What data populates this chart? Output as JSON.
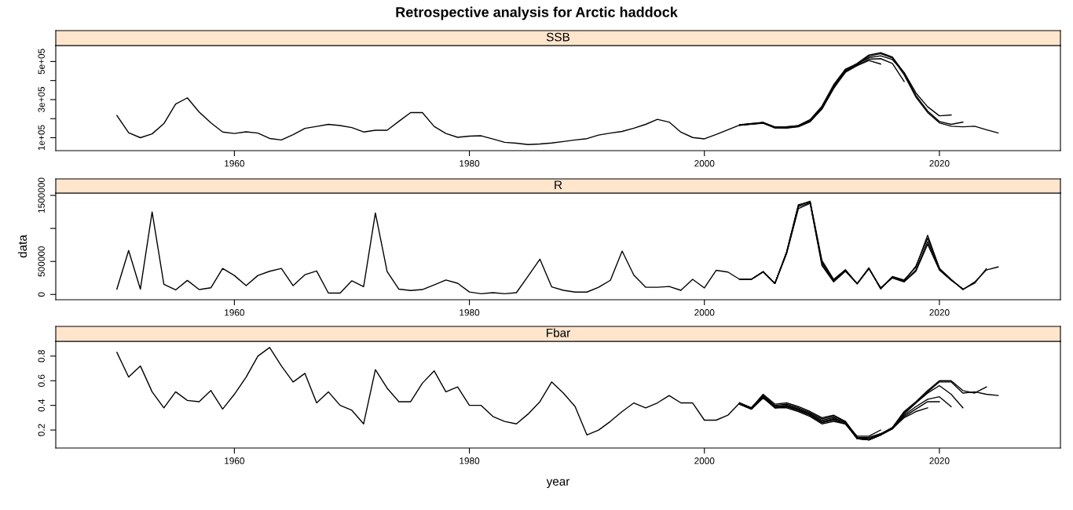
{
  "chart_data": [
    {
      "type": "line",
      "title": "Retrospective analysis for Arctic haddock",
      "subtitle": "SSB",
      "xlim": [
        1944.8,
        2030.3
      ],
      "xticks": [
        1960,
        1980,
        2000,
        2020
      ],
      "ylim": [
        32000,
        584000
      ],
      "yticks": [
        {
          "value": 100000,
          "label": "1e+05"
        },
        {
          "value": 200000,
          "label": null
        },
        {
          "value": 300000,
          "label": "3e+05"
        },
        {
          "value": 400000,
          "label": null
        },
        {
          "value": 500000,
          "label": "5e+05"
        }
      ],
      "grid": false,
      "line_style": "solid",
      "marker": "none",
      "series": [
        {
          "color": "#000000",
          "x": [
            1950,
            1951,
            1952,
            1953,
            1954,
            1955,
            1956,
            1957,
            1958,
            1959,
            1960,
            1961,
            1962,
            1963,
            1964,
            1965,
            1966,
            1967,
            1968,
            1969,
            1970,
            1971,
            1972,
            1973,
            1974,
            1975,
            1976,
            1977,
            1978,
            1979,
            1980,
            1981,
            1982,
            1983,
            1984,
            1985,
            1986,
            1987,
            1988,
            1989,
            1990,
            1991,
            1992,
            1993,
            1994,
            1995,
            1996,
            1997,
            1998,
            1999,
            2000,
            2001,
            2002,
            2003,
            2004,
            2005,
            2006,
            2007,
            2008,
            2009,
            2010,
            2011,
            2012,
            2013,
            2014,
            2015,
            2016,
            2017,
            2018,
            2019,
            2020,
            2021,
            2022,
            2023,
            2024,
            2025
          ],
          "values": [
            217000,
            126000,
            100000,
            120000,
            174000,
            277000,
            309000,
            235000,
            178000,
            130000,
            122000,
            131000,
            124000,
            96000,
            88000,
            116000,
            149000,
            159000,
            170000,
            164000,
            153000,
            130000,
            139000,
            139000,
            186000,
            232000,
            232000,
            159000,
            122000,
            102000,
            108000,
            110000,
            93000,
            76000,
            71000,
            64000,
            67000,
            72000,
            80000,
            88000,
            95000,
            114000,
            124000,
            133000,
            150000,
            170000,
            196000,
            182000,
            129000,
            101000,
            94000,
            117000,
            142000,
            166000,
            172000,
            178000,
            151000,
            150000,
            157000,
            184000,
            250000,
            358000,
            447000,
            483000,
            528000,
            541000,
            519000,
            430000,
            313000,
            232000,
            178000,
            160000,
            157000,
            160000,
            142000,
            125000
          ]
        },
        {
          "color": "#000000",
          "x": [
            2003,
            2004,
            2005,
            2006,
            2007,
            2008,
            2009,
            2010,
            2011,
            2012,
            2013,
            2014,
            2015,
            2016,
            2017,
            2018,
            2019,
            2020,
            2021,
            2022
          ],
          "values": [
            168000,
            174000,
            181000,
            155000,
            154000,
            161000,
            190000,
            258000,
            368000,
            455000,
            490000,
            534000,
            546000,
            524000,
            440000,
            322000,
            240000,
            185000,
            170000,
            182000
          ]
        },
        {
          "color": "#000000",
          "x": [
            2003,
            2004,
            2005,
            2006,
            2007,
            2008,
            2009,
            2010,
            2011,
            2012,
            2013,
            2014,
            2015,
            2016,
            2017,
            2018,
            2019,
            2020,
            2021
          ],
          "values": [
            165000,
            171000,
            176000,
            153000,
            155000,
            164000,
            195000,
            265000,
            378000,
            460000,
            488000,
            520000,
            530000,
            510000,
            442000,
            335000,
            262000,
            215000,
            219000
          ]
        },
        {
          "color": "#000000",
          "x": [
            2003,
            2004,
            2005,
            2006,
            2007,
            2008,
            2009,
            2010,
            2011,
            2012,
            2013,
            2014,
            2015,
            2016,
            2017
          ],
          "values": [
            167000,
            173000,
            179000,
            157000,
            158000,
            163000,
            187000,
            255000,
            372000,
            452000,
            480000,
            512000,
            515000,
            490000,
            395000
          ]
        },
        {
          "color": "#000000",
          "x": [
            2003,
            2004,
            2005,
            2006,
            2007,
            2008,
            2009,
            2010,
            2011,
            2012,
            2013,
            2014,
            2015
          ],
          "values": [
            166000,
            172000,
            177000,
            152000,
            152000,
            159000,
            185000,
            252000,
            362000,
            443000,
            478000,
            505000,
            487000
          ]
        }
      ]
    },
    {
      "type": "line",
      "subtitle": "R",
      "ylabel": "data",
      "xlim": [
        1944.8,
        2030.3
      ],
      "xticks": [
        1960,
        1980,
        2000,
        2020
      ],
      "ylim": [
        -80000,
        1536000
      ],
      "yticks": [
        0,
        500000,
        {
          "value": 1000000,
          "label": null
        },
        1500000
      ],
      "grid": false,
      "line_style": "solid",
      "marker": "none",
      "series": [
        {
          "color": "#000000",
          "x": [
            1950,
            1951,
            1952,
            1953,
            1954,
            1955,
            1956,
            1957,
            1958,
            1959,
            1960,
            1961,
            1962,
            1963,
            1964,
            1965,
            1966,
            1967,
            1968,
            1969,
            1970,
            1971,
            1972,
            1973,
            1974,
            1975,
            1976,
            1977,
            1978,
            1979,
            1980,
            1981,
            1982,
            1983,
            1984,
            1985,
            1986,
            1987,
            1988,
            1989,
            1990,
            1991,
            1992,
            1993,
            1994,
            1995,
            1996,
            1997,
            1998,
            1999,
            2000,
            2001,
            2002,
            2003,
            2004,
            2005,
            2006,
            2007,
            2008,
            2009,
            2010,
            2011,
            2012,
            2013,
            2014,
            2015,
            2016,
            2017,
            2018,
            2019,
            2020,
            2021,
            2022,
            2023,
            2024,
            2025
          ],
          "values": [
            80000,
            665000,
            80000,
            1250000,
            154000,
            69000,
            213000,
            74000,
            101000,
            394000,
            287000,
            133000,
            287000,
            351000,
            394000,
            133000,
            298000,
            356000,
            21000,
            21000,
            207000,
            117000,
            1234000,
            346000,
            80000,
            59000,
            74000,
            144000,
            218000,
            170000,
            37000,
            11000,
            27000,
            11000,
            27000,
            277000,
            534000,
            115000,
            63000,
            36000,
            36000,
            109000,
            214000,
            656000,
            292000,
            109000,
            109000,
            120000,
            63000,
            229000,
            99000,
            365000,
            339000,
            229000,
            229000,
            344000,
            167000,
            646000,
            1349000,
            1412000,
            516000,
            229000,
            375000,
            162000,
            401000,
            83000,
            271000,
            219000,
            412000,
            896000,
            396000,
            229000,
            73000,
            188000,
            370000,
            417000
          ]
        },
        {
          "color": "#000000",
          "x": [
            2003,
            2004,
            2005,
            2006,
            2007,
            2008,
            2009,
            2010,
            2011,
            2012,
            2013,
            2014,
            2015,
            2016,
            2017,
            2018,
            2019,
            2020,
            2021,
            2022,
            2023,
            2024
          ],
          "values": [
            229000,
            229000,
            344000,
            167000,
            630000,
            1330000,
            1390000,
            470000,
            200000,
            360000,
            162000,
            395000,
            95000,
            260000,
            200000,
            370000,
            800000,
            380000,
            220000,
            80000,
            170000,
            390000
          ]
        },
        {
          "color": "#000000",
          "x": [
            2003,
            2004,
            2005,
            2006,
            2007,
            2008,
            2009,
            2010,
            2011,
            2012,
            2013,
            2014,
            2015,
            2016,
            2017,
            2018,
            2019,
            2020,
            2021,
            2022
          ],
          "values": [
            229000,
            229000,
            344000,
            167000,
            620000,
            1300000,
            1380000,
            440000,
            190000,
            350000,
            165000,
            390000,
            100000,
            250000,
            190000,
            350000,
            760000,
            370000,
            215000,
            85000
          ]
        },
        {
          "color": "#000000",
          "x": [
            2003,
            2004,
            2005,
            2006,
            2007,
            2008,
            2009,
            2010,
            2011,
            2012,
            2013,
            2014,
            2015,
            2016,
            2017,
            2018,
            2019,
            2020
          ],
          "values": [
            229000,
            229000,
            344000,
            167000,
            640000,
            1360000,
            1400000,
            490000,
            215000,
            368000,
            160000,
            398000,
            90000,
            265000,
            210000,
            430000,
            850000,
            400000
          ]
        }
      ]
    },
    {
      "type": "line",
      "subtitle": "Fbar",
      "xlabel": "year",
      "xlim": [
        1944.8,
        2030.3
      ],
      "xticks": [
        1960,
        1980,
        2000,
        2020
      ],
      "ylim": [
        0.054,
        0.92
      ],
      "yticks": [
        0.2,
        0.4,
        0.6,
        0.8
      ],
      "grid": false,
      "line_style": "solid",
      "marker": "none",
      "series": [
        {
          "color": "#000000",
          "x": [
            1950,
            1951,
            1952,
            1953,
            1954,
            1955,
            1956,
            1957,
            1958,
            1959,
            1960,
            1961,
            1962,
            1963,
            1964,
            1965,
            1966,
            1967,
            1968,
            1969,
            1970,
            1971,
            1972,
            1973,
            1974,
            1975,
            1976,
            1977,
            1978,
            1979,
            1980,
            1981,
            1982,
            1983,
            1984,
            1985,
            1986,
            1987,
            1988,
            1989,
            1990,
            1991,
            1992,
            1993,
            1994,
            1995,
            1996,
            1997,
            1998,
            1999,
            2000,
            2001,
            2002,
            2003,
            2004,
            2005,
            2006,
            2007,
            2008,
            2009,
            2010,
            2011,
            2012,
            2013,
            2014,
            2015,
            2016,
            2017,
            2018,
            2019,
            2020,
            2021,
            2022,
            2023,
            2024,
            2025
          ],
          "values": [
            0.83,
            0.63,
            0.72,
            0.51,
            0.38,
            0.51,
            0.44,
            0.43,
            0.52,
            0.37,
            0.49,
            0.63,
            0.8,
            0.87,
            0.72,
            0.59,
            0.66,
            0.42,
            0.51,
            0.4,
            0.36,
            0.25,
            0.69,
            0.54,
            0.43,
            0.43,
            0.58,
            0.68,
            0.51,
            0.55,
            0.4,
            0.4,
            0.31,
            0.27,
            0.25,
            0.33,
            0.43,
            0.59,
            0.5,
            0.39,
            0.16,
            0.2,
            0.27,
            0.35,
            0.42,
            0.38,
            0.42,
            0.48,
            0.42,
            0.42,
            0.28,
            0.28,
            0.32,
            0.42,
            0.38,
            0.49,
            0.41,
            0.42,
            0.39,
            0.35,
            0.3,
            0.32,
            0.27,
            0.14,
            0.12,
            0.16,
            0.22,
            0.34,
            0.42,
            0.51,
            0.59,
            0.59,
            0.5,
            0.51,
            0.49,
            0.48
          ]
        },
        {
          "color": "#000000",
          "x": [
            2003,
            2004,
            2005,
            2006,
            2007,
            2008,
            2009,
            2010,
            2011,
            2012,
            2013,
            2014,
            2015,
            2016,
            2017,
            2018,
            2019,
            2020,
            2021,
            2022,
            2023,
            2024
          ],
          "values": [
            0.42,
            0.38,
            0.48,
            0.4,
            0.41,
            0.38,
            0.34,
            0.29,
            0.31,
            0.27,
            0.14,
            0.13,
            0.17,
            0.22,
            0.35,
            0.43,
            0.52,
            0.6,
            0.6,
            0.52,
            0.5,
            0.55
          ]
        },
        {
          "color": "#000000",
          "x": [
            2003,
            2004,
            2005,
            2006,
            2007,
            2008,
            2009,
            2010,
            2011,
            2012,
            2013,
            2014,
            2015,
            2016,
            2017,
            2018,
            2019,
            2020,
            2021,
            2022
          ],
          "values": [
            0.42,
            0.38,
            0.48,
            0.39,
            0.4,
            0.37,
            0.33,
            0.28,
            0.3,
            0.26,
            0.13,
            0.12,
            0.16,
            0.21,
            0.33,
            0.42,
            0.5,
            0.56,
            0.49,
            0.38
          ]
        },
        {
          "color": "#000000",
          "x": [
            2003,
            2004,
            2005,
            2006,
            2007,
            2008,
            2009,
            2010,
            2011,
            2012,
            2013,
            2014,
            2015,
            2016,
            2017,
            2018,
            2019,
            2020,
            2021
          ],
          "values": [
            0.42,
            0.37,
            0.47,
            0.39,
            0.4,
            0.37,
            0.33,
            0.27,
            0.29,
            0.26,
            0.13,
            0.12,
            0.16,
            0.21,
            0.32,
            0.39,
            0.45,
            0.47,
            0.39
          ]
        },
        {
          "color": "#000000",
          "x": [
            2003,
            2004,
            2005,
            2006,
            2007,
            2008,
            2009,
            2010,
            2011,
            2012,
            2013,
            2014,
            2015,
            2016,
            2017,
            2018,
            2019,
            2020
          ],
          "values": [
            0.41,
            0.37,
            0.47,
            0.38,
            0.39,
            0.36,
            0.32,
            0.26,
            0.28,
            0.25,
            0.13,
            0.12,
            0.16,
            0.21,
            0.31,
            0.37,
            0.43,
            0.43
          ]
        },
        {
          "color": "#000000",
          "x": [
            2003,
            2004,
            2005,
            2006,
            2007,
            2008,
            2009,
            2010,
            2011,
            2012,
            2013,
            2014,
            2015,
            2016,
            2017,
            2018,
            2019
          ],
          "values": [
            0.41,
            0.37,
            0.46,
            0.38,
            0.38,
            0.35,
            0.31,
            0.25,
            0.27,
            0.25,
            0.14,
            0.14,
            0.17,
            0.21,
            0.3,
            0.35,
            0.38
          ]
        },
        {
          "color": "#000000",
          "x": [
            2003,
            2004,
            2005,
            2006,
            2007,
            2008,
            2009,
            2010,
            2011,
            2012,
            2013,
            2014,
            2015
          ],
          "values": [
            0.41,
            0.37,
            0.47,
            0.38,
            0.39,
            0.36,
            0.32,
            0.26,
            0.29,
            0.26,
            0.15,
            0.15,
            0.2
          ]
        }
      ]
    }
  ]
}
